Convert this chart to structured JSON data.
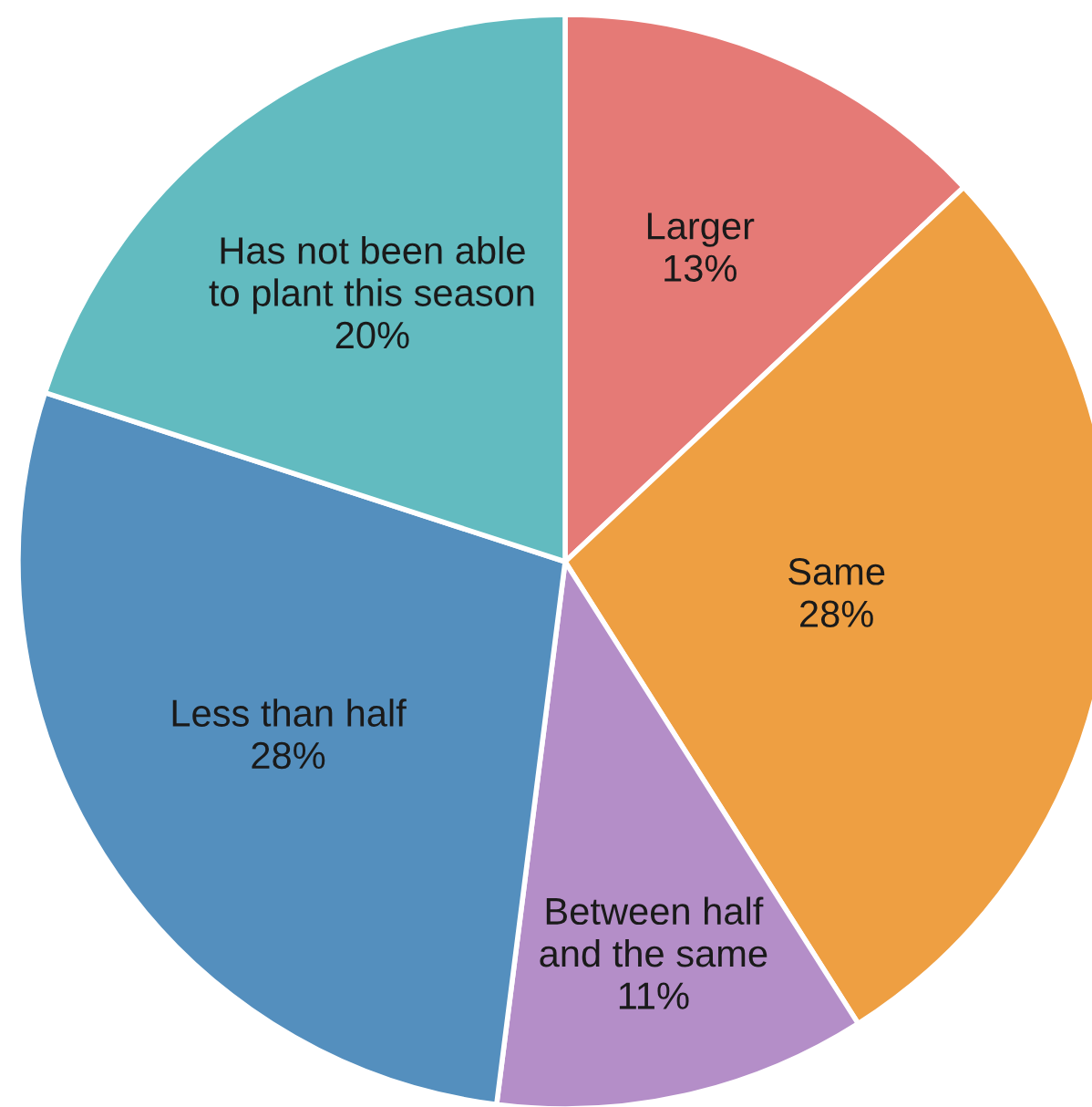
{
  "chart_data": {
    "type": "pie",
    "categories": [
      "Larger",
      "Same",
      "Between half\nand the same",
      "Less than half",
      "Has not been able\nto plant this season"
    ],
    "values": [
      13,
      28,
      11,
      28,
      20
    ],
    "value_labels": [
      "13%",
      "28%",
      "11%",
      "28%",
      "20%"
    ],
    "colors": [
      "#e57a76",
      "#ee9f42",
      "#b48ec8",
      "#548fbe",
      "#62bbc0"
    ],
    "legend": false
  }
}
